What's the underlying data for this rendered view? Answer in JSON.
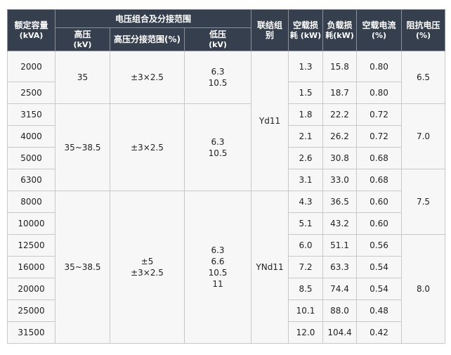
{
  "header": {
    "capacity": "额定容量",
    "capacity_unit": "(kVA)",
    "group": "电压组合及分接范围",
    "hv": "高压",
    "hv_unit": "(kV)",
    "tap": "高压分接范围(%)",
    "lv": "低压",
    "lv_unit": "(kV)",
    "connection_1": "联结组",
    "connection_2": "别",
    "noload_loss_1": "空载损",
    "noload_loss_2": "耗 (kW)",
    "load_loss_1": "负载损",
    "load_loss_2": "耗(kW)",
    "noload_current": "空载电流",
    "noload_current_unit": "(%)",
    "impedance": "阻抗电压",
    "impedance_unit": "(%)"
  },
  "groups": {
    "hv": [
      "35",
      "35~38.5",
      "35~38.5"
    ],
    "tap": [
      [
        "±3×2.5"
      ],
      [
        "±3×2.5"
      ],
      [
        "±5",
        "±3×2.5"
      ]
    ],
    "lv": [
      [
        "6.3",
        "10.5"
      ],
      [
        "6.3",
        "10.5"
      ],
      [
        "6.3",
        "6.6",
        "10.5",
        "11"
      ]
    ],
    "connection": [
      "Yd11",
      "YNd11"
    ],
    "impedance": [
      "6.5",
      "7.0",
      "7.5",
      "8.0"
    ]
  },
  "rows": [
    {
      "capacity": "2000",
      "p0": "1.3",
      "pk": "15.8",
      "i0": "0.80"
    },
    {
      "capacity": "2500",
      "p0": "1.5",
      "pk": "18.7",
      "i0": "0.80"
    },
    {
      "capacity": "3150",
      "p0": "1.8",
      "pk": "22.2",
      "i0": "0.72"
    },
    {
      "capacity": "4000",
      "p0": "2.1",
      "pk": "26.2",
      "i0": "0.72"
    },
    {
      "capacity": "5000",
      "p0": "2.6",
      "pk": "30.8",
      "i0": "0.68"
    },
    {
      "capacity": "6300",
      "p0": "3.1",
      "pk": "33.0",
      "i0": "0.68"
    },
    {
      "capacity": "8000",
      "p0": "4.3",
      "pk": "36.5",
      "i0": "0.60"
    },
    {
      "capacity": "10000",
      "p0": "5.1",
      "pk": "43.2",
      "i0": "0.60"
    },
    {
      "capacity": "12500",
      "p0": "6.0",
      "pk": "51.1",
      "i0": "0.56"
    },
    {
      "capacity": "16000",
      "p0": "7.2",
      "pk": "63.3",
      "i0": "0.54"
    },
    {
      "capacity": "20000",
      "p0": "8.5",
      "pk": "74.4",
      "i0": "0.54"
    },
    {
      "capacity": "25000",
      "p0": "10.1",
      "pk": "88.0",
      "i0": "0.48"
    },
    {
      "capacity": "31500",
      "p0": "12.0",
      "pk": "104.4",
      "i0": "0.42"
    }
  ],
  "colors": {
    "header_bg": "#363f4e",
    "cell_bg": "#f7f7f7",
    "border": "#c9c9c9"
  }
}
